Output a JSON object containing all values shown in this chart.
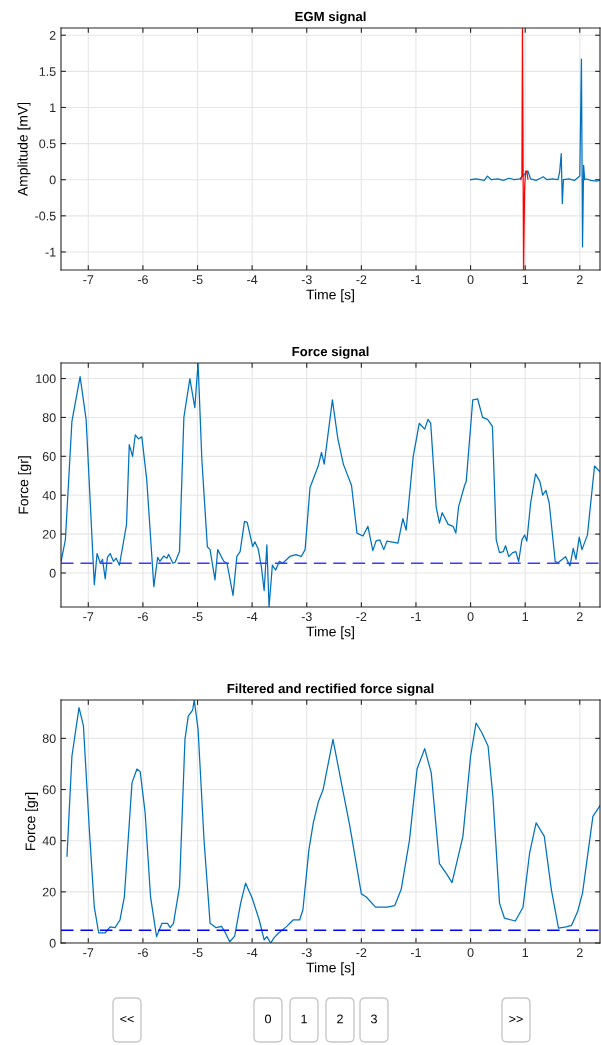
{
  "chart_data": [
    {
      "type": "line",
      "title": "EGM signal",
      "xlabel": "Time [s]",
      "ylabel": "Amplitude [mV]",
      "xlim": [
        -7.5,
        2.37
      ],
      "ylim": [
        -1.25,
        2.1
      ],
      "xticks": [
        -7,
        -6,
        -5,
        -4,
        -3,
        -2,
        -1,
        0,
        1,
        2
      ],
      "yticks": [
        -1,
        -0.5,
        0,
        0.5,
        1,
        1.5,
        2
      ],
      "grid": true,
      "legend": false,
      "series": [
        {
          "color": "#0072bd",
          "x": [
            0,
            0.1,
            0.25,
            0.31,
            0.38,
            0.5,
            0.6,
            0.7,
            0.8,
            0.9,
            1.05,
            1.1,
            1.2,
            1.28,
            1.33,
            1.4,
            1.5,
            1.6,
            1.63,
            1.66,
            1.68,
            1.7,
            1.8,
            1.9,
            2.0,
            2.03,
            2.05,
            2.07,
            2.09,
            2.12,
            2.2,
            2.3,
            2.37
          ],
          "values": [
            0,
            0.01,
            -0.01,
            0.05,
            0,
            0.01,
            -0.01,
            0.02,
            0,
            0.01,
            0.12,
            0.01,
            -0.01,
            0.02,
            0.04,
            0,
            0.01,
            0,
            0.1,
            0.36,
            -0.33,
            0,
            0.01,
            -0.01,
            0.05,
            1.67,
            -0.93,
            0.2,
            0,
            0.01,
            -0.01,
            -0.02,
            -0.01
          ]
        },
        {
          "color": "#ff0000",
          "x": [
            0.92,
            0.94,
            0.95,
            0.96,
            0.97,
            0.99,
            1.01,
            1.03,
            1.05
          ],
          "values": [
            0,
            0.05,
            2.1,
            0.5,
            -1.25,
            -0.1,
            0.12,
            0.12,
            0.01
          ]
        }
      ]
    },
    {
      "type": "line",
      "title": "Force signal",
      "xlabel": "Time [s]",
      "ylabel": "Force [gr]",
      "xlim": [
        -7.5,
        2.37
      ],
      "ylim": [
        -17.5,
        108
      ],
      "xticks": [
        -7,
        -6,
        -5,
        -4,
        -3,
        -2,
        -1,
        0,
        1,
        2
      ],
      "yticks": [
        0,
        20,
        40,
        60,
        80,
        100
      ],
      "grid": true,
      "legend": false,
      "ref_lines": [
        {
          "axis": "y",
          "value": 5,
          "color": "#3b3bff",
          "line_style": "dashed"
        }
      ],
      "series": [
        {
          "color": "#0072bd",
          "x": [
            -7.5,
            -7.42,
            -7.3,
            -7.15,
            -7.04,
            -6.89,
            -6.84,
            -6.78,
            -6.74,
            -6.69,
            -6.65,
            -6.6,
            -6.54,
            -6.49,
            -6.43,
            -6.34,
            -6.3,
            -6.25,
            -6.19,
            -6.14,
            -6.08,
            -6.02,
            -5.93,
            -5.8,
            -5.73,
            -5.69,
            -5.62,
            -5.56,
            -5.53,
            -5.45,
            -5.41,
            -5.33,
            -5.25,
            -5.14,
            -5.05,
            -4.99,
            -4.92,
            -4.82,
            -4.77,
            -4.68,
            -4.63,
            -4.52,
            -4.46,
            -4.35,
            -4.28,
            -4.22,
            -4.14,
            -4.09,
            -3.99,
            -3.95,
            -3.89,
            -3.83,
            -3.78,
            -3.73,
            -3.69,
            -3.63,
            -3.57,
            -3.5,
            -3.44,
            -3.31,
            -3.2,
            -3.1,
            -3.03,
            -2.94,
            -2.79,
            -2.73,
            -2.68,
            -2.53,
            -2.43,
            -2.33,
            -2.18,
            -2.08,
            -1.97,
            -1.88,
            -1.79,
            -1.73,
            -1.66,
            -1.59,
            -1.53,
            -1.33,
            -1.24,
            -1.18,
            -1.05,
            -0.94,
            -0.84,
            -0.78,
            -0.73,
            -0.63,
            -0.57,
            -0.52,
            -0.41,
            -0.32,
            -0.27,
            -0.22,
            -0.11,
            -0.08,
            0.04,
            0.13,
            0.22,
            0.31,
            0.4,
            0.47,
            0.53,
            0.6,
            0.64,
            0.7,
            0.77,
            0.83,
            0.88,
            0.94,
            0.99,
            1.03,
            1.1,
            1.19,
            1.27,
            1.32,
            1.38,
            1.44,
            1.55,
            1.6,
            1.74,
            1.82,
            1.88,
            1.93,
            1.99,
            2.04,
            2.14,
            2.27,
            2.37
          ],
          "values": [
            5.7,
            17,
            78,
            101,
            79,
            -6,
            10,
            5,
            7,
            -3,
            8,
            10,
            6,
            7.6,
            4,
            18.5,
            25,
            66,
            60,
            71,
            69,
            70,
            48,
            -7,
            8,
            6,
            8.7,
            7.6,
            9.6,
            5,
            5.5,
            11,
            80,
            100,
            85,
            108,
            58,
            13.5,
            12,
            -3.5,
            12,
            6,
            5,
            -11.5,
            8.5,
            11,
            26.5,
            26,
            13.5,
            16,
            12.5,
            3,
            -9,
            14.4,
            -17.5,
            4,
            1.5,
            6,
            5,
            8.5,
            9.4,
            8.5,
            12,
            44,
            55,
            62,
            56,
            89,
            69,
            56,
            45,
            20.5,
            19,
            24,
            11.5,
            16.5,
            17,
            12,
            16.4,
            15.3,
            28,
            22,
            60,
            77,
            74,
            79,
            77,
            34,
            25.6,
            31,
            25,
            24,
            20.5,
            34,
            45,
            47,
            89,
            89.5,
            80,
            79,
            75.4,
            17,
            10.5,
            11,
            14,
            8.4,
            10.5,
            11,
            5.8,
            17,
            19.5,
            16.4,
            36,
            51,
            47,
            40,
            42.5,
            36,
            5.8,
            5.3,
            8.4,
            3.6,
            12.7,
            7,
            18.4,
            12,
            19.6,
            55,
            52
          ]
        }
      ]
    },
    {
      "type": "line",
      "title": "Filtered and rectified force signal",
      "xlabel": "Time [s]",
      "ylabel": "Force [gr]",
      "xlim": [
        -7.5,
        2.37
      ],
      "ylim": [
        0,
        95
      ],
      "xticks": [
        -7,
        -6,
        -5,
        -4,
        -3,
        -2,
        -1,
        0,
        1,
        2
      ],
      "yticks": [
        0,
        20,
        40,
        60,
        80
      ],
      "grid": true,
      "legend": false,
      "ref_lines": [
        {
          "axis": "y",
          "value": 5,
          "color": "#0000ff",
          "line_style": "dashed"
        }
      ],
      "series": [
        {
          "color": "#0072bd",
          "x": [
            -7.39,
            -7.3,
            -7.17,
            -7.09,
            -6.98,
            -6.89,
            -6.81,
            -6.69,
            -6.6,
            -6.51,
            -6.42,
            -6.34,
            -6.2,
            -6.11,
            -6.05,
            -5.96,
            -5.86,
            -5.75,
            -5.65,
            -5.55,
            -5.5,
            -5.44,
            -5.33,
            -5.23,
            -5.17,
            -5.09,
            -5.06,
            -4.99,
            -4.88,
            -4.77,
            -4.66,
            -4.56,
            -4.5,
            -4.41,
            -4.32,
            -4.21,
            -4.12,
            -4.0,
            -3.87,
            -3.78,
            -3.73,
            -3.66,
            -3.6,
            -3.52,
            -3.37,
            -3.25,
            -3.13,
            -3.07,
            -2.96,
            -2.88,
            -2.79,
            -2.7,
            -2.52,
            -2.33,
            -2.21,
            -2.0,
            -1.91,
            -1.74,
            -1.53,
            -1.39,
            -1.27,
            -1.12,
            -0.98,
            -0.84,
            -0.72,
            -0.57,
            -0.44,
            -0.34,
            -0.14,
            0.0,
            0.1,
            0.2,
            0.32,
            0.41,
            0.53,
            0.62,
            0.82,
            0.96,
            1.08,
            1.2,
            1.35,
            1.48,
            1.61,
            1.75,
            1.85,
            1.96,
            2.05,
            2.24,
            2.37
          ],
          "values": [
            34,
            73,
            92,
            85,
            44,
            14,
            4,
            4,
            6.3,
            6,
            9,
            18,
            62.6,
            68,
            67,
            51,
            18,
            2.5,
            7.7,
            7.7,
            6,
            7.7,
            22,
            79.6,
            88.7,
            91,
            95,
            83.5,
            40,
            7.7,
            6,
            6.5,
            4.4,
            0.5,
            2.7,
            15.6,
            23.4,
            17.6,
            9,
            1.2,
            2.5,
            0,
            2,
            3.8,
            6.4,
            9,
            9,
            13,
            36.5,
            47,
            55,
            60,
            79.6,
            58.7,
            45.6,
            19.2,
            18,
            14,
            14,
            14.6,
            21,
            40,
            68,
            76,
            66.5,
            31,
            27,
            23.6,
            41.7,
            73,
            86,
            82.5,
            77,
            57,
            15.6,
            9.7,
            8.6,
            14,
            35,
            47,
            41.7,
            20.8,
            5.8,
            6.3,
            6.9,
            12.3,
            19.5,
            49.5,
            53.7
          ]
        }
      ],
      "annotations": [
        "<<",
        "0",
        "1",
        "2",
        "3",
        ">>"
      ]
    }
  ]
}
